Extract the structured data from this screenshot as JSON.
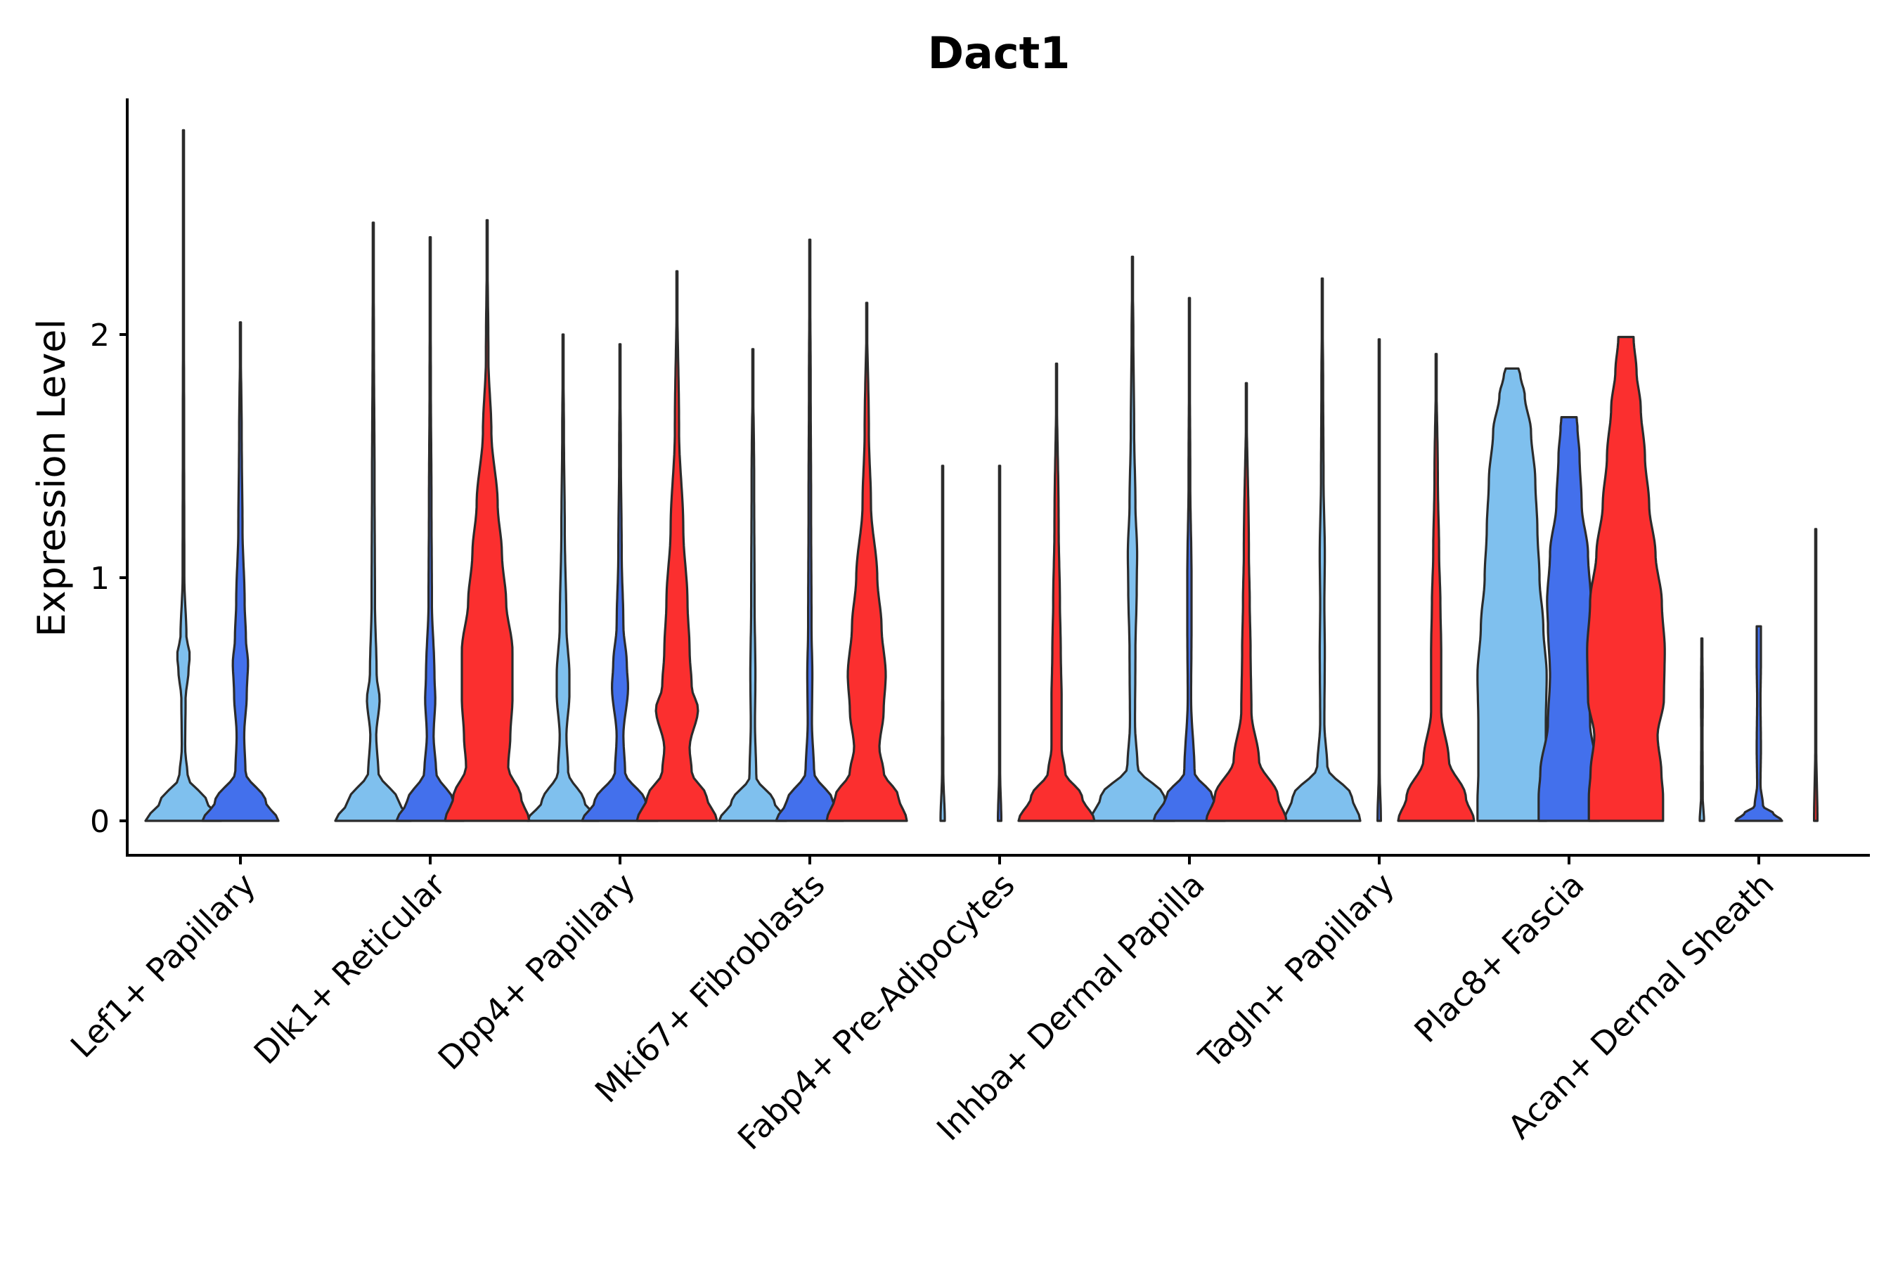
{
  "chart_data": {
    "type": "violin",
    "title": "Dact1",
    "xlabel": "",
    "ylabel": "Expression Level",
    "ylim": [
      -0.14,
      2.98
    ],
    "yticks": [
      0,
      1,
      2
    ],
    "grid": false,
    "legend": "none",
    "categories": [
      "Lef1+ Papillary",
      "Dlk1+ Reticular",
      "Dpp4+ Papillary",
      "Mki67+ Fibroblasts",
      "Fabp4+ Pre-Adipocytes",
      "Inhba+ Dermal Papilla",
      "Tagln+ Papillary",
      "Plac8+ Fascia",
      "Acan+ Dermal Sheath"
    ],
    "series": [
      {
        "name": "group 1",
        "color": "#7fc0ee",
        "slot": -1,
        "max": [
          2.84,
          2.46,
          2.0,
          1.94,
          1.46,
          2.32,
          2.23,
          1.86,
          0.75
        ],
        "profiles": [
          [
            [
              0,
              0.9
            ],
            [
              0.08,
              0.55
            ],
            [
              0.18,
              0.1
            ],
            [
              0.3,
              0.04
            ],
            [
              0.5,
              0.05
            ],
            [
              0.62,
              0.12
            ],
            [
              0.68,
              0.15
            ],
            [
              0.76,
              0.07
            ],
            [
              1.0,
              0.02
            ],
            [
              1.6,
              0.015
            ],
            [
              2.3,
              0.008
            ],
            [
              2.84,
              0
            ]
          ],
          [
            [
              0,
              0.9
            ],
            [
              0.08,
              0.6
            ],
            [
              0.2,
              0.12
            ],
            [
              0.35,
              0.07
            ],
            [
              0.5,
              0.15
            ],
            [
              0.6,
              0.08
            ],
            [
              0.9,
              0.04
            ],
            [
              1.4,
              0.03
            ],
            [
              2.0,
              0.015
            ],
            [
              2.46,
              0
            ]
          ],
          [
            [
              0,
              0.85
            ],
            [
              0.08,
              0.5
            ],
            [
              0.2,
              0.12
            ],
            [
              0.35,
              0.08
            ],
            [
              0.52,
              0.15
            ],
            [
              0.6,
              0.15
            ],
            [
              0.8,
              0.08
            ],
            [
              1.2,
              0.04
            ],
            [
              1.6,
              0.02
            ],
            [
              2.0,
              0
            ]
          ],
          [
            [
              0,
              0.8
            ],
            [
              0.08,
              0.5
            ],
            [
              0.18,
              0.08
            ],
            [
              0.4,
              0.05
            ],
            [
              0.6,
              0.06
            ],
            [
              0.9,
              0.04
            ],
            [
              1.4,
              0.03
            ],
            [
              1.94,
              0
            ]
          ],
          [
            [
              0,
              0.05
            ],
            [
              0.2,
              0.015
            ],
            [
              0.8,
              0.01
            ],
            [
              1.46,
              0
            ]
          ],
          [
            [
              0,
              1.0
            ],
            [
              0.1,
              0.75
            ],
            [
              0.22,
              0.12
            ],
            [
              0.4,
              0.06
            ],
            [
              0.7,
              0.07
            ],
            [
              0.95,
              0.1
            ],
            [
              1.1,
              0.11
            ],
            [
              1.3,
              0.07
            ],
            [
              1.6,
              0.04
            ],
            [
              2.0,
              0.02
            ],
            [
              2.32,
              0
            ]
          ],
          [
            [
              0,
              0.9
            ],
            [
              0.1,
              0.7
            ],
            [
              0.22,
              0.12
            ],
            [
              0.4,
              0.05
            ],
            [
              0.7,
              0.06
            ],
            [
              0.9,
              0.05
            ],
            [
              1.1,
              0.06
            ],
            [
              1.4,
              0.03
            ],
            [
              1.8,
              0.02
            ],
            [
              2.23,
              0
            ]
          ],
          [
            [
              0,
              0.82
            ],
            [
              0.08,
              0.82
            ],
            [
              0.2,
              0.8
            ],
            [
              0.4,
              0.8
            ],
            [
              0.6,
              0.82
            ],
            [
              0.8,
              0.74
            ],
            [
              1.0,
              0.65
            ],
            [
              1.2,
              0.6
            ],
            [
              1.4,
              0.55
            ],
            [
              1.6,
              0.45
            ],
            [
              1.75,
              0.3
            ],
            [
              1.83,
              0.2
            ],
            [
              1.86,
              0.15
            ]
          ],
          [
            [
              0,
              0.05
            ],
            [
              0.1,
              0.02
            ],
            [
              0.35,
              0.015
            ],
            [
              0.5,
              0.02
            ],
            [
              0.75,
              0.01
            ]
          ]
        ]
      },
      {
        "name": "group 2",
        "color": "#4370ec",
        "slot": 0,
        "max": [
          2.05,
          2.4,
          1.96,
          2.39,
          1.46,
          2.15,
          1.98,
          1.66,
          0.8
        ],
        "profiles": [
          [
            [
              0,
              0.9
            ],
            [
              0.08,
              0.6
            ],
            [
              0.2,
              0.12
            ],
            [
              0.35,
              0.09
            ],
            [
              0.52,
              0.15
            ],
            [
              0.65,
              0.18
            ],
            [
              0.75,
              0.13
            ],
            [
              0.9,
              0.1
            ],
            [
              1.2,
              0.05
            ],
            [
              1.6,
              0.03
            ],
            [
              2.05,
              0
            ]
          ],
          [
            [
              0,
              0.8
            ],
            [
              0.08,
              0.55
            ],
            [
              0.2,
              0.14
            ],
            [
              0.35,
              0.08
            ],
            [
              0.5,
              0.12
            ],
            [
              0.6,
              0.1
            ],
            [
              0.9,
              0.04
            ],
            [
              1.3,
              0.03
            ],
            [
              1.8,
              0.015
            ],
            [
              2.4,
              0
            ]
          ],
          [
            [
              0,
              0.9
            ],
            [
              0.08,
              0.6
            ],
            [
              0.2,
              0.12
            ],
            [
              0.35,
              0.08
            ],
            [
              0.55,
              0.19
            ],
            [
              0.65,
              0.16
            ],
            [
              0.8,
              0.08
            ],
            [
              1.1,
              0.04
            ],
            [
              1.5,
              0.02
            ],
            [
              1.96,
              0
            ]
          ],
          [
            [
              0,
              0.8
            ],
            [
              0.08,
              0.55
            ],
            [
              0.2,
              0.1
            ],
            [
              0.4,
              0.05
            ],
            [
              0.6,
              0.06
            ],
            [
              0.8,
              0.04
            ],
            [
              1.3,
              0.03
            ],
            [
              1.8,
              0.02
            ],
            [
              2.39,
              0
            ]
          ],
          [
            [
              0,
              0.04
            ],
            [
              0.2,
              0.012
            ],
            [
              0.8,
              0.01
            ],
            [
              1.46,
              0
            ]
          ],
          [
            [
              0,
              0.85
            ],
            [
              0.1,
              0.55
            ],
            [
              0.2,
              0.12
            ],
            [
              0.5,
              0.04
            ],
            [
              0.8,
              0.05
            ],
            [
              1.0,
              0.05
            ],
            [
              1.4,
              0.02
            ],
            [
              2.15,
              0
            ]
          ],
          [
            [
              0,
              0.04
            ],
            [
              0.2,
              0.012
            ],
            [
              1.0,
              0.01
            ],
            [
              1.98,
              0
            ]
          ],
          [
            [
              0,
              0.72
            ],
            [
              0.1,
              0.72
            ],
            [
              0.2,
              0.68
            ],
            [
              0.4,
              0.5
            ],
            [
              0.6,
              0.45
            ],
            [
              0.8,
              0.5
            ],
            [
              0.9,
              0.52
            ],
            [
              1.1,
              0.45
            ],
            [
              1.3,
              0.3
            ],
            [
              1.5,
              0.25
            ],
            [
              1.62,
              0.2
            ],
            [
              1.66,
              0.18
            ]
          ],
          [
            [
              0,
              0.55
            ],
            [
              0.03,
              0.35
            ],
            [
              0.06,
              0.1
            ],
            [
              0.15,
              0.04
            ],
            [
              0.3,
              0.05
            ],
            [
              0.5,
              0.04
            ],
            [
              0.65,
              0.05
            ],
            [
              0.8,
              0.05
            ]
          ]
        ]
      },
      {
        "name": "group 3",
        "color": "#fb2f2f",
        "slot": 1,
        "max": [
          2.47,
          2.26,
          2.13,
          1.88,
          1.8,
          1.92,
          1.99,
          1.2
        ],
        "cats": [
          1,
          2,
          3,
          4,
          5,
          6,
          7,
          8
        ],
        "profiles": [
          [
            [
              0,
              1.0
            ],
            [
              0.1,
              0.8
            ],
            [
              0.22,
              0.5
            ],
            [
              0.35,
              0.55
            ],
            [
              0.5,
              0.6
            ],
            [
              0.7,
              0.6
            ],
            [
              0.9,
              0.45
            ],
            [
              1.1,
              0.35
            ],
            [
              1.3,
              0.25
            ],
            [
              1.6,
              0.1
            ],
            [
              1.9,
              0.03
            ],
            [
              2.47,
              0
            ]
          ],
          [
            [
              0,
              0.95
            ],
            [
              0.1,
              0.7
            ],
            [
              0.2,
              0.35
            ],
            [
              0.3,
              0.3
            ],
            [
              0.46,
              0.5
            ],
            [
              0.55,
              0.35
            ],
            [
              0.7,
              0.3
            ],
            [
              0.9,
              0.25
            ],
            [
              1.2,
              0.15
            ],
            [
              1.6,
              0.05
            ],
            [
              2.26,
              0
            ]
          ],
          [
            [
              0,
              0.95
            ],
            [
              0.1,
              0.75
            ],
            [
              0.2,
              0.4
            ],
            [
              0.3,
              0.3
            ],
            [
              0.45,
              0.4
            ],
            [
              0.6,
              0.45
            ],
            [
              0.8,
              0.35
            ],
            [
              1.0,
              0.25
            ],
            [
              1.3,
              0.1
            ],
            [
              1.6,
              0.05
            ],
            [
              2.13,
              0
            ]
          ],
          [
            [
              0,
              0.9
            ],
            [
              0.1,
              0.6
            ],
            [
              0.2,
              0.2
            ],
            [
              0.3,
              0.12
            ],
            [
              0.5,
              0.12
            ],
            [
              0.7,
              0.1
            ],
            [
              0.9,
              0.08
            ],
            [
              1.2,
              0.05
            ],
            [
              1.88,
              0
            ]
          ],
          [
            [
              0,
              0.95
            ],
            [
              0.1,
              0.75
            ],
            [
              0.25,
              0.3
            ],
            [
              0.45,
              0.12
            ],
            [
              0.7,
              0.1
            ],
            [
              0.9,
              0.08
            ],
            [
              1.1,
              0.06
            ],
            [
              1.8,
              0
            ]
          ],
          [
            [
              0,
              0.9
            ],
            [
              0.1,
              0.7
            ],
            [
              0.25,
              0.3
            ],
            [
              0.45,
              0.12
            ],
            [
              0.7,
              0.12
            ],
            [
              0.9,
              0.1
            ],
            [
              1.1,
              0.07
            ],
            [
              1.4,
              0.04
            ],
            [
              1.92,
              0
            ]
          ],
          [
            [
              0,
              0.88
            ],
            [
              0.1,
              0.88
            ],
            [
              0.2,
              0.84
            ],
            [
              0.35,
              0.75
            ],
            [
              0.5,
              0.9
            ],
            [
              0.7,
              0.92
            ],
            [
              0.9,
              0.85
            ],
            [
              1.1,
              0.7
            ],
            [
              1.3,
              0.55
            ],
            [
              1.5,
              0.45
            ],
            [
              1.7,
              0.35
            ],
            [
              1.85,
              0.25
            ],
            [
              1.99,
              0.18
            ]
          ],
          [
            [
              0,
              0.04
            ],
            [
              0.3,
              0.012
            ],
            [
              0.8,
              0.01
            ],
            [
              1.2,
              0
            ]
          ]
        ]
      }
    ]
  }
}
